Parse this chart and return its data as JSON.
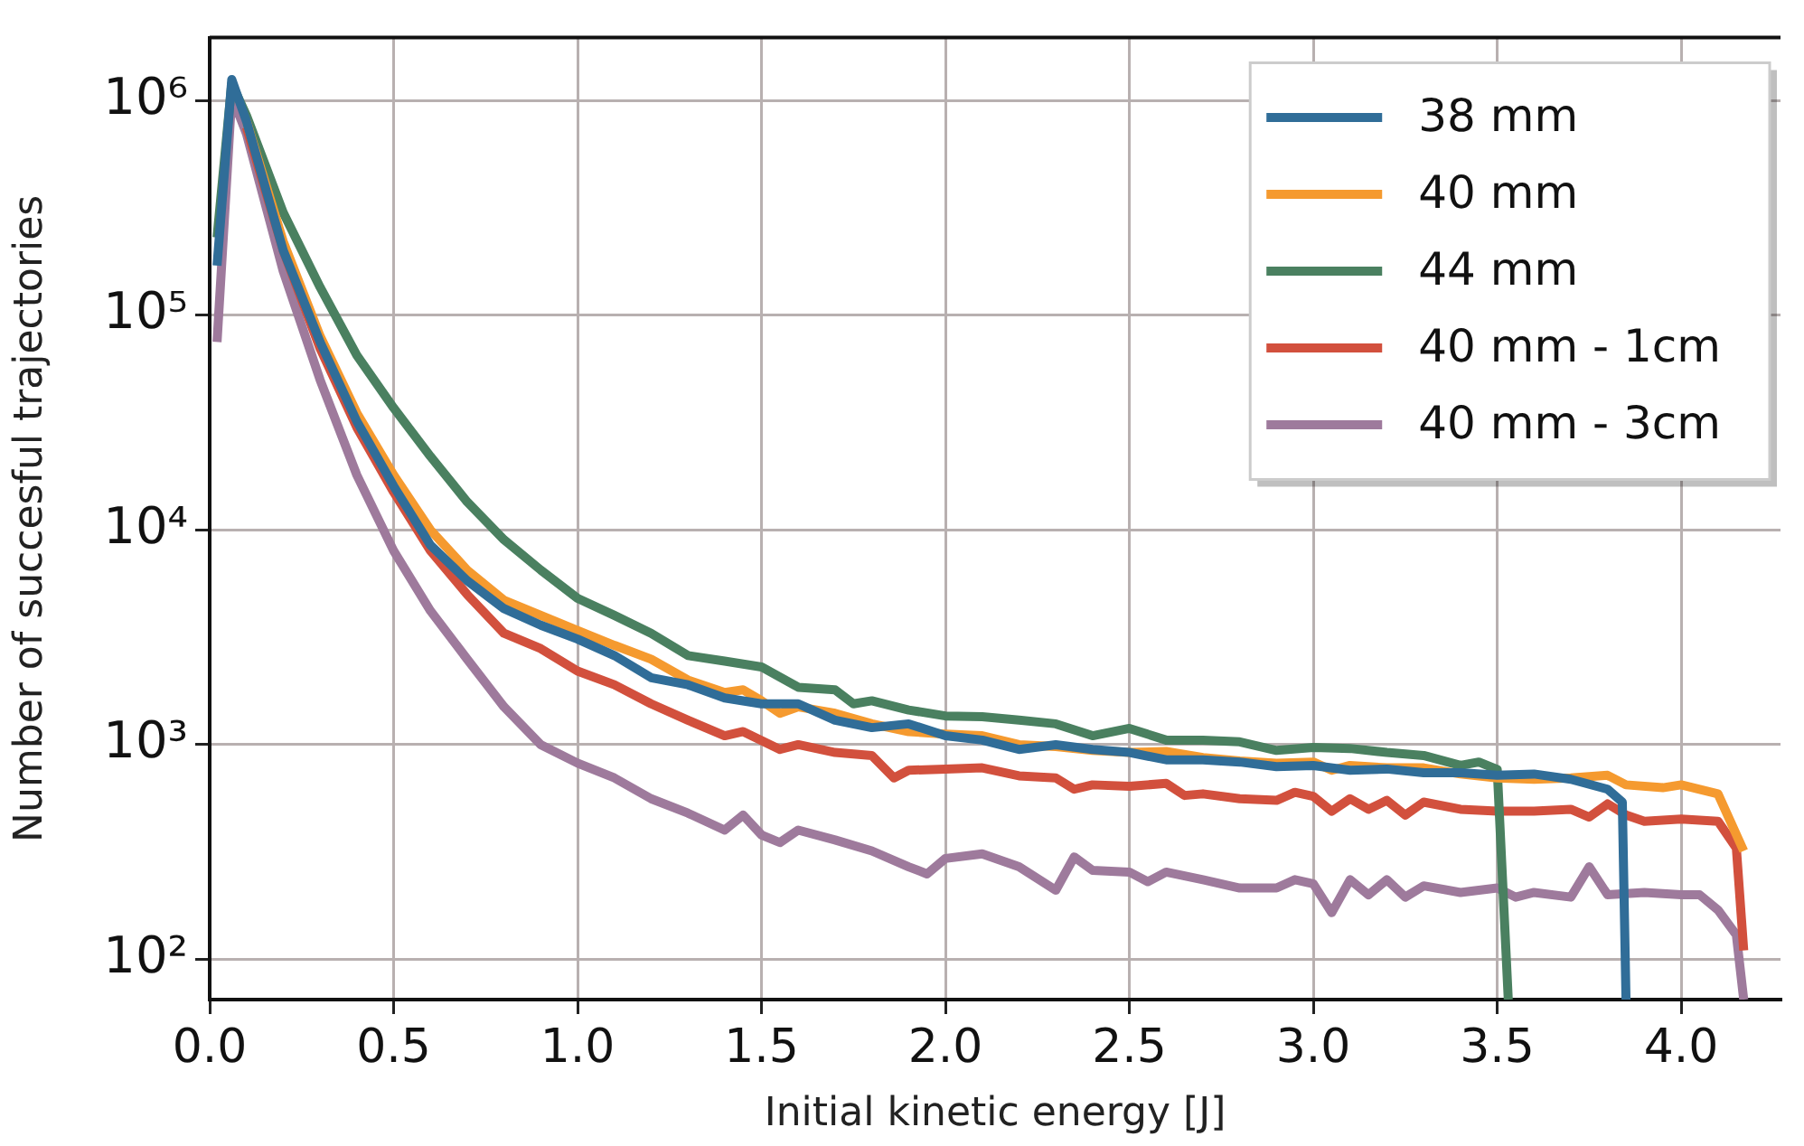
{
  "chart_data": {
    "type": "line",
    "xlabel": "Initial kinetic energy [J]",
    "ylabel": "Number of succesful trajectories",
    "log": "y",
    "grid": true,
    "legend": "top right",
    "marker": "none",
    "line_style": "solid",
    "xlim": [
      0,
      4.27
    ],
    "xticks": [
      {
        "value": 0,
        "label": "0.0"
      },
      {
        "value": 0.5,
        "label": "0.5"
      },
      {
        "value": 1,
        "label": "1.0"
      },
      {
        "value": 1.5,
        "label": "1.5"
      },
      {
        "value": 2,
        "label": "2.0"
      },
      {
        "value": 2.5,
        "label": "2.5"
      },
      {
        "value": 3,
        "label": "3.0"
      },
      {
        "value": 3.5,
        "label": "3.5"
      },
      {
        "value": 4,
        "label": "4.0"
      }
    ],
    "ylim": [
      65,
      1960000
    ],
    "yticks": [
      {
        "value": 100,
        "label": "10²"
      },
      {
        "value": 1000,
        "label": "10³"
      },
      {
        "value": 10000,
        "label": "10⁴"
      },
      {
        "value": 100000,
        "label": "10⁵"
      },
      {
        "value": 1000000,
        "label": "10⁶"
      }
    ],
    "series": [
      {
        "name": "38 mm",
        "color": "#306d98",
        "x": [
          0.02,
          0.06,
          0.1,
          0.2,
          0.3,
          0.4,
          0.5,
          0.6,
          0.7,
          0.8,
          0.9,
          1.0,
          1.1,
          1.2,
          1.3,
          1.4,
          1.5,
          1.6,
          1.7,
          1.8,
          1.9,
          2.0,
          2.1,
          2.2,
          2.3,
          2.4,
          2.5,
          2.6,
          2.7,
          2.8,
          2.9,
          3.0,
          3.1,
          3.2,
          3.3,
          3.4,
          3.5,
          3.6,
          3.7,
          3.8,
          3.84,
          3.85
        ],
        "values": [
          170000,
          1250000,
          800000,
          200000,
          75000,
          32000,
          16000,
          8500,
          5800,
          4300,
          3600,
          3100,
          2600,
          2050,
          1900,
          1650,
          1550,
          1550,
          1300,
          1200,
          1250,
          1100,
          1050,
          950,
          1000,
          950,
          920,
          850,
          850,
          830,
          790,
          800,
          760,
          770,
          740,
          740,
          720,
          730,
          690,
          620,
          540,
          65
        ]
      },
      {
        "name": "40 mm",
        "color": "#f59a2f",
        "x": [
          0.1,
          0.2,
          0.3,
          0.4,
          0.5,
          0.6,
          0.7,
          0.8,
          0.9,
          1.0,
          1.1,
          1.2,
          1.3,
          1.4,
          1.45,
          1.5,
          1.55,
          1.6,
          1.7,
          1.8,
          1.9,
          2.0,
          2.1,
          2.2,
          2.3,
          2.4,
          2.5,
          2.6,
          2.7,
          2.8,
          2.9,
          3.0,
          3.05,
          3.1,
          3.2,
          3.3,
          3.4,
          3.5,
          3.6,
          3.7,
          3.8,
          3.85,
          3.95,
          4.0,
          4.1,
          4.17
        ],
        "values": [
          800000,
          220000,
          80000,
          35000,
          18000,
          10000,
          6500,
          4700,
          4000,
          3400,
          2900,
          2500,
          2000,
          1750,
          1800,
          1600,
          1400,
          1500,
          1400,
          1250,
          1150,
          1120,
          1100,
          1000,
          980,
          940,
          920,
          930,
          870,
          840,
          820,
          830,
          760,
          800,
          780,
          780,
          730,
          700,
          690,
          700,
          720,
          650,
          630,
          650,
          590,
          320
        ]
      },
      {
        "name": "44 mm",
        "color": "#4a8060",
        "x": [
          0.02,
          0.06,
          0.1,
          0.2,
          0.3,
          0.4,
          0.5,
          0.6,
          0.7,
          0.8,
          0.9,
          1.0,
          1.1,
          1.2,
          1.3,
          1.4,
          1.5,
          1.6,
          1.7,
          1.75,
          1.8,
          1.9,
          2.0,
          2.1,
          2.2,
          2.3,
          2.4,
          2.5,
          2.6,
          2.7,
          2.8,
          2.9,
          3.0,
          3.1,
          3.2,
          3.3,
          3.4,
          3.45,
          3.5,
          3.53
        ],
        "values": [
          230000,
          1200000,
          850000,
          300000,
          135000,
          65000,
          37000,
          22000,
          13500,
          9000,
          6500,
          4800,
          4000,
          3300,
          2600,
          2450,
          2300,
          1850,
          1800,
          1550,
          1600,
          1450,
          1360,
          1350,
          1300,
          1250,
          1100,
          1190,
          1050,
          1050,
          1030,
          940,
          970,
          960,
          920,
          890,
          800,
          830,
          767,
          65
        ]
      },
      {
        "name": "40 mm - 1cm",
        "color": "#d2503d",
        "x": [
          0.1,
          0.2,
          0.3,
          0.4,
          0.5,
          0.6,
          0.7,
          0.8,
          0.9,
          1.0,
          1.1,
          1.2,
          1.3,
          1.4,
          1.45,
          1.55,
          1.6,
          1.7,
          1.8,
          1.86,
          1.9,
          2.0,
          2.1,
          2.2,
          2.3,
          2.35,
          2.4,
          2.5,
          2.6,
          2.65,
          2.7,
          2.8,
          2.9,
          2.95,
          3.0,
          3.05,
          3.1,
          3.15,
          3.2,
          3.25,
          3.3,
          3.4,
          3.5,
          3.6,
          3.7,
          3.75,
          3.8,
          3.85,
          3.9,
          4.0,
          4.1,
          4.15,
          4.17
        ],
        "values": [
          750000,
          200000,
          70000,
          30000,
          15000,
          8000,
          5000,
          3300,
          2800,
          2200,
          1900,
          1550,
          1300,
          1100,
          1150,
          950,
          1000,
          920,
          890,
          700,
          760,
          770,
          780,
          716,
          700,
          620,
          650,
          640,
          660,
          580,
          590,
          560,
          550,
          600,
          575,
          490,
          560,
          500,
          550,
          470,
          540,
          500,
          490,
          490,
          500,
          460,
          530,
          470,
          440,
          450,
          440,
          330,
          110
        ]
      },
      {
        "name": "40 mm - 3cm",
        "color": "#9e7a9c",
        "x": [
          0.02,
          0.06,
          0.1,
          0.2,
          0.3,
          0.4,
          0.5,
          0.6,
          0.7,
          0.8,
          0.9,
          1.0,
          1.1,
          1.2,
          1.3,
          1.4,
          1.45,
          1.5,
          1.55,
          1.6,
          1.7,
          1.8,
          1.9,
          1.95,
          2.0,
          2.1,
          2.2,
          2.3,
          2.35,
          2.4,
          2.5,
          2.55,
          2.6,
          2.7,
          2.8,
          2.9,
          2.95,
          3.0,
          3.05,
          3.1,
          3.15,
          3.2,
          3.25,
          3.3,
          3.4,
          3.5,
          3.55,
          3.6,
          3.7,
          3.75,
          3.8,
          3.9,
          4.0,
          4.05,
          4.1,
          4.15,
          4.17
        ],
        "values": [
          75000,
          1050000,
          700000,
          160000,
          50000,
          18000,
          8000,
          4200,
          2500,
          1500,
          1000,
          820,
          700,
          560,
          480,
          400,
          470,
          380,
          350,
          400,
          360,
          320,
          270,
          250,
          295,
          310,
          270,
          210,
          300,
          260,
          255,
          230,
          255,
          235,
          215,
          215,
          235,
          225,
          165,
          235,
          200,
          235,
          195,
          220,
          205,
          215,
          195,
          205,
          195,
          270,
          200,
          205,
          200,
          200,
          170,
          130,
          65
        ]
      }
    ]
  }
}
